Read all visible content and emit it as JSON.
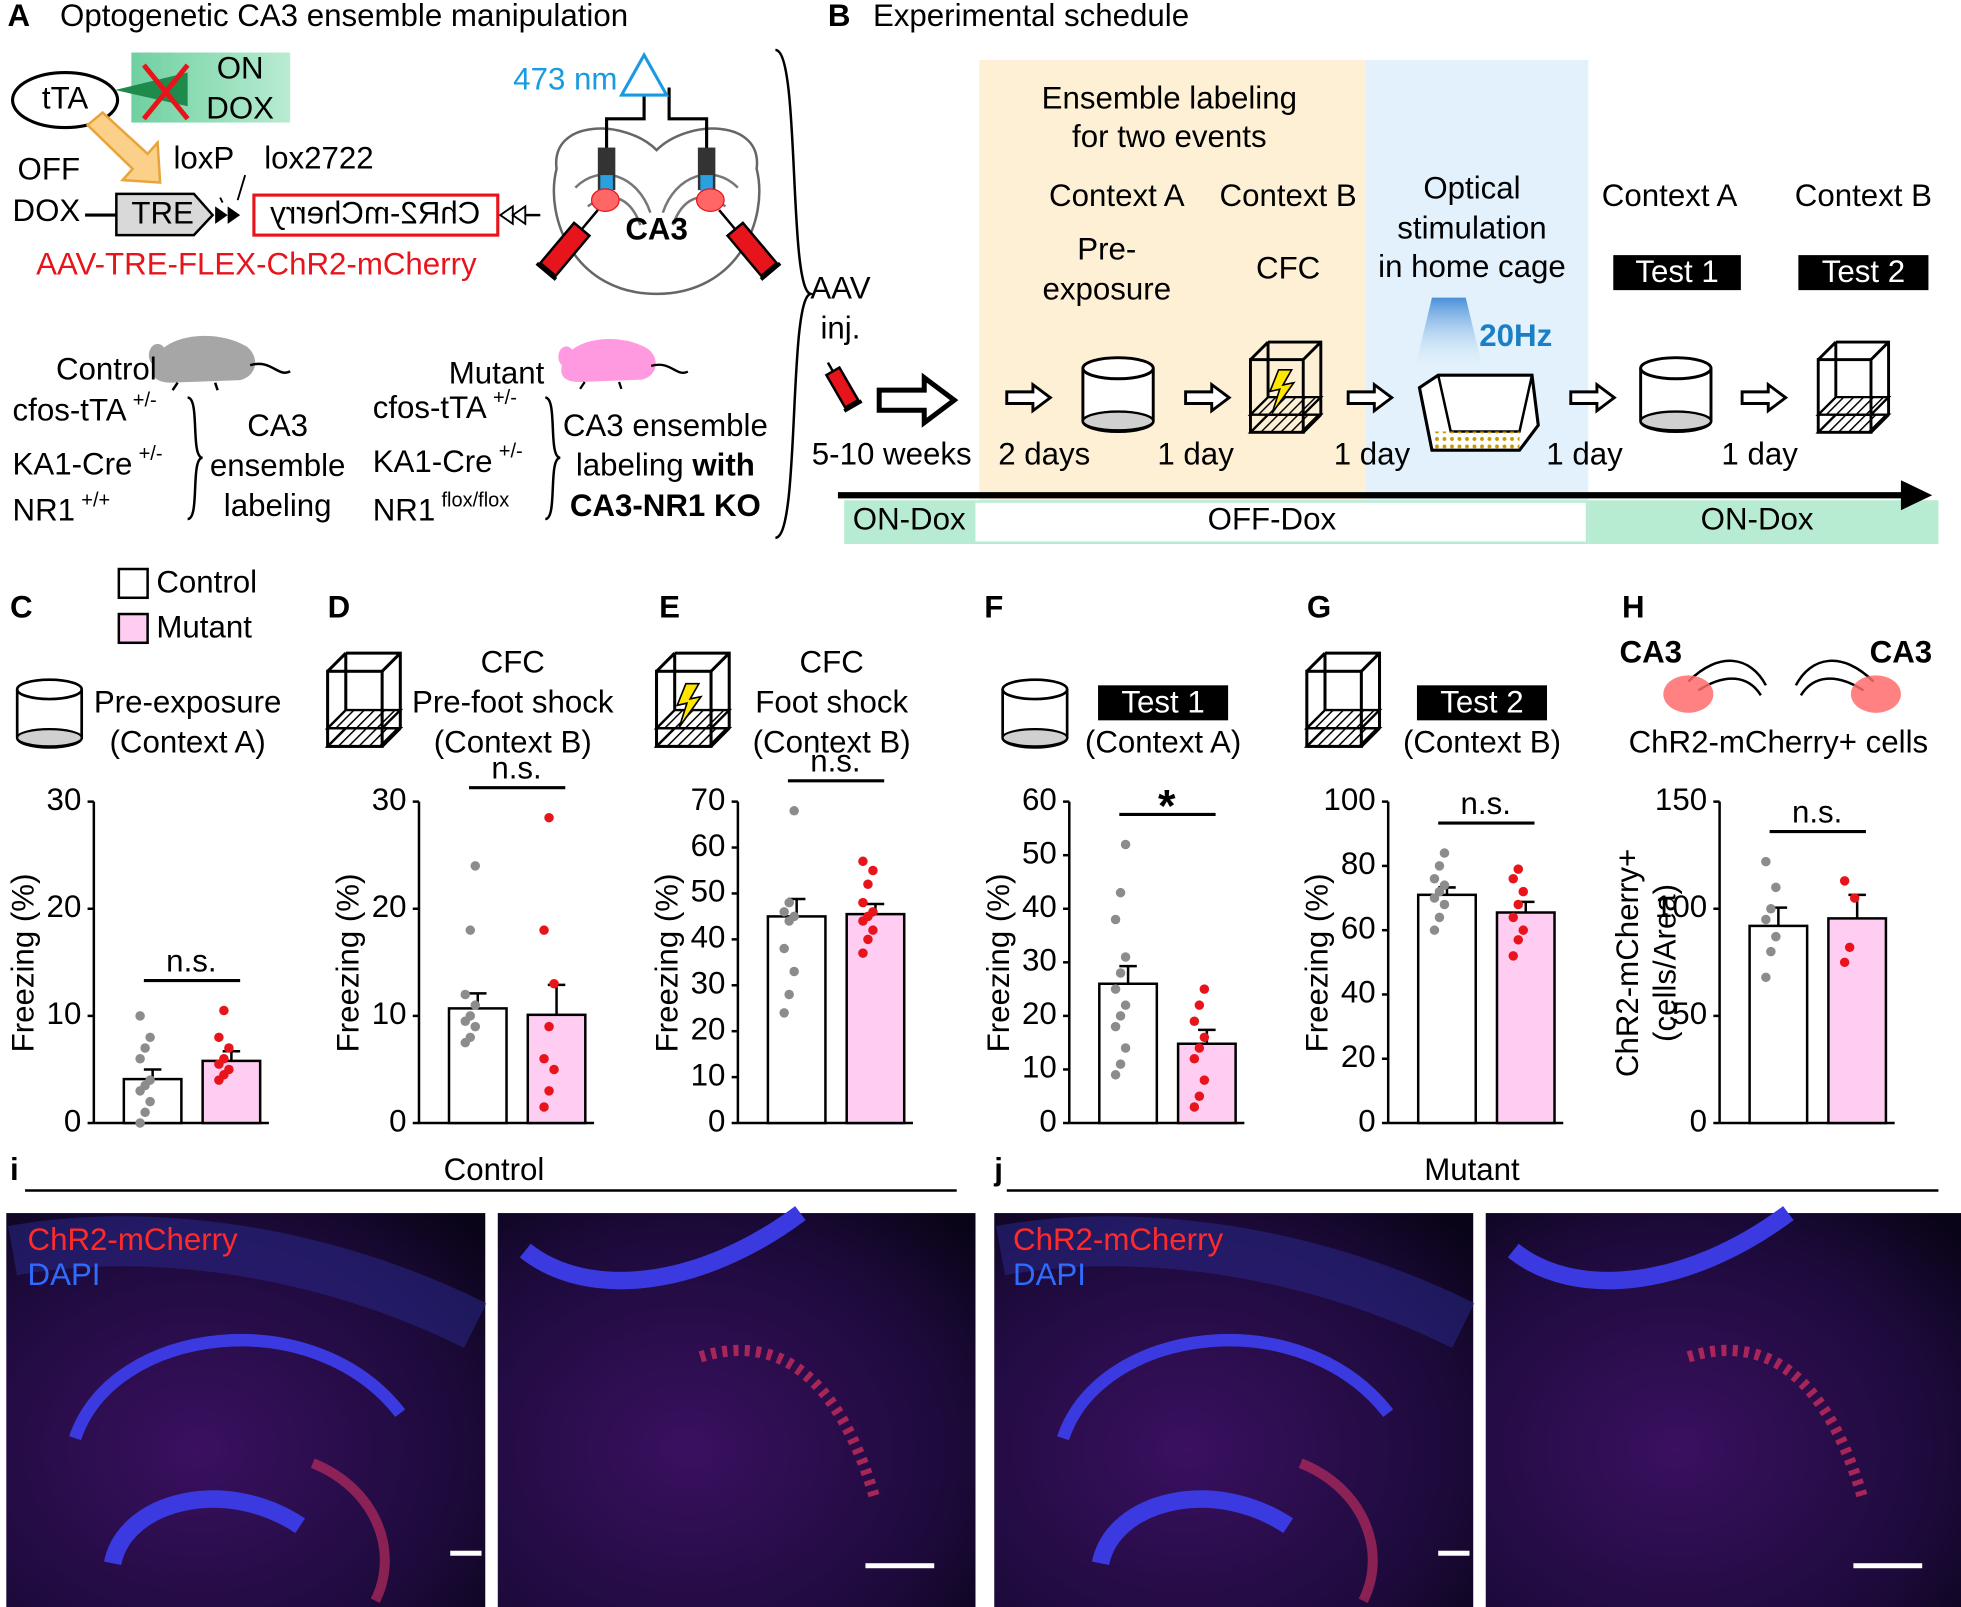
{
  "panel_a": {
    "label": "A",
    "title": "Optogenetic CA3 ensemble manipulation",
    "tta": "tTA",
    "on_dox": [
      "ON",
      "DOX"
    ],
    "off_dox": [
      "OFF",
      "DOX"
    ],
    "tre": "TRE",
    "loxp": "loxP",
    "lox2722": "lox2722",
    "chr2": "ChR2-mCherry",
    "laser": "473 nm",
    "ca3": "CA3",
    "aav": "AAV-TRE-FLEX-ChR2-mCherry",
    "control": {
      "name": "Control",
      "genotype": [
        [
          "cfos-tTA",
          "+/-"
        ],
        [
          "KA1-Cre",
          "+/-"
        ],
        [
          "NR1",
          "+/+"
        ]
      ],
      "result": [
        "CA3",
        "ensemble",
        "labeling"
      ]
    },
    "mutant": {
      "name": "Mutant",
      "genotype": [
        [
          "cfos-tTA",
          "+/-"
        ],
        [
          "KA1-Cre",
          "+/-"
        ],
        [
          "NR1",
          "flox/flox"
        ]
      ],
      "result": {
        "line1": "CA3 ensemble",
        "line2": "labeling",
        "line2_bold": "with",
        "line3": "CA3-NR1 KO"
      }
    }
  },
  "panel_b": {
    "label": "B",
    "title": "Experimental schedule",
    "labeling": [
      "Ensemble labeling",
      "for two events"
    ],
    "aav": [
      "AAV",
      "inj."
    ],
    "steps": [
      {
        "context": "Context A",
        "desc": [
          "Pre-",
          "exposure"
        ]
      },
      {
        "context": "Context B",
        "desc": [
          "CFC"
        ]
      },
      {
        "desc": [
          "Optical",
          "stimulation",
          "in home cage"
        ],
        "freq": "20Hz"
      },
      {
        "context": "Context A",
        "test": "Test 1"
      },
      {
        "context": "Context B",
        "test": "Test 2"
      }
    ],
    "intervals": [
      "5-10 weeks",
      "2 days",
      "1 day",
      "1 day",
      "1 day",
      "1 day"
    ],
    "dox": [
      "ON-Dox",
      "OFF-Dox",
      "ON-Dox"
    ]
  },
  "chart_data": [
    {
      "type": "bar",
      "panel": "C",
      "title": [
        "Pre-exposure",
        "(Context A)"
      ],
      "ylabel": "Freezing (%)",
      "ylim": [
        0,
        30
      ],
      "yticks": [
        0,
        10,
        20,
        30
      ],
      "significance": "n.s.",
      "series": [
        {
          "name": "Control",
          "color": "#ffffff",
          "point_color": "#8c8c8c",
          "values": [
            4.1
          ],
          "errors": [
            0.9
          ],
          "points": [
            0,
            1,
            2,
            3,
            3.5,
            4,
            6,
            7,
            8,
            10
          ]
        },
        {
          "name": "Mutant",
          "color": "#ffccf2",
          "point_color": "#e8141b",
          "values": [
            5.8
          ],
          "errors": [
            0.9
          ],
          "points": [
            4,
            4.5,
            5,
            5.5,
            6,
            7,
            8,
            10.5
          ]
        }
      ]
    },
    {
      "type": "bar",
      "panel": "D",
      "title": [
        "CFC",
        "Pre-foot shock",
        "(Context B)"
      ],
      "ylabel": "Freezing (%)",
      "ylim": [
        0,
        30
      ],
      "yticks": [
        0,
        10,
        20,
        30
      ],
      "significance": "n.s.",
      "series": [
        {
          "name": "Control",
          "color": "#ffffff",
          "point_color": "#8c8c8c",
          "values": [
            10.7
          ],
          "errors": [
            1.4
          ],
          "points": [
            7.5,
            8,
            9,
            9.5,
            10,
            11,
            12,
            18,
            24
          ]
        },
        {
          "name": "Mutant",
          "color": "#ffccf2",
          "point_color": "#e8141b",
          "values": [
            10.1
          ],
          "errors": [
            2.8
          ],
          "points": [
            1.5,
            3,
            5,
            6,
            9,
            13,
            18,
            28.5
          ]
        }
      ]
    },
    {
      "type": "bar",
      "panel": "E",
      "title": [
        "CFC",
        "Foot shock",
        "(Context B)"
      ],
      "ylabel": "Freezing (%)",
      "ylim": [
        0,
        70
      ],
      "yticks": [
        0,
        10,
        20,
        30,
        40,
        50,
        60,
        70
      ],
      "significance": "n.s.",
      "series": [
        {
          "name": "Control",
          "color": "#ffffff",
          "point_color": "#8c8c8c",
          "values": [
            45
          ],
          "errors": [
            3.8
          ],
          "points": [
            24,
            28,
            33,
            38,
            44,
            45,
            46,
            48,
            68
          ]
        },
        {
          "name": "Mutant",
          "color": "#ffccf2",
          "point_color": "#e8141b",
          "values": [
            45.5
          ],
          "errors": [
            2.2
          ],
          "points": [
            37,
            40,
            42,
            44,
            45,
            46,
            48,
            52,
            55,
            57
          ]
        }
      ]
    },
    {
      "type": "bar",
      "panel": "F",
      "title_box": "Test 1",
      "title": [
        "(Context A)"
      ],
      "ylabel": "Freezing (%)",
      "ylim": [
        0,
        60
      ],
      "yticks": [
        0,
        10,
        20,
        30,
        40,
        50,
        60
      ],
      "significance": "*",
      "series": [
        {
          "name": "Control",
          "color": "#ffffff",
          "point_color": "#8c8c8c",
          "values": [
            26
          ],
          "errors": [
            3.3
          ],
          "points": [
            9,
            11,
            14,
            18,
            20,
            22,
            25,
            28,
            31,
            38,
            43,
            52
          ]
        },
        {
          "name": "Mutant",
          "color": "#ffccf2",
          "point_color": "#e8141b",
          "values": [
            14.8
          ],
          "errors": [
            2.6
          ],
          "points": [
            3,
            5,
            8,
            12,
            14,
            16,
            19,
            22,
            25
          ]
        }
      ]
    },
    {
      "type": "bar",
      "panel": "G",
      "title_box": "Test 2",
      "title": [
        "(Context B)"
      ],
      "ylabel": "Freezing (%)",
      "ylim": [
        0,
        100
      ],
      "yticks": [
        0,
        20,
        40,
        60,
        80,
        100
      ],
      "significance": "n.s.",
      "series": [
        {
          "name": "Control",
          "color": "#ffffff",
          "point_color": "#8c8c8c",
          "values": [
            71
          ],
          "errors": [
            2.3
          ],
          "points": [
            60,
            64,
            68,
            70,
            72,
            74,
            76,
            80,
            84
          ]
        },
        {
          "name": "Mutant",
          "color": "#ffccf2",
          "point_color": "#e8141b",
          "values": [
            65.5
          ],
          "errors": [
            3.3
          ],
          "points": [
            52,
            57,
            60,
            64,
            68,
            72,
            76,
            79
          ]
        }
      ]
    },
    {
      "type": "bar",
      "panel": "H",
      "icon_labels": [
        "CA3",
        "CA3"
      ],
      "title": [
        "ChR2-mCherry+ cells"
      ],
      "ylabel": [
        "ChR2-mCherry+",
        "(cells/Area)"
      ],
      "ylim": [
        0,
        150
      ],
      "yticks": [
        0,
        50,
        100,
        150
      ],
      "significance": "n.s.",
      "series": [
        {
          "name": "Control",
          "color": "#ffffff",
          "point_color": "#8c8c8c",
          "values": [
            92
          ],
          "errors": [
            8.5
          ],
          "points": [
            68,
            80,
            87,
            95,
            100,
            110,
            122
          ]
        },
        {
          "name": "Mutant",
          "color": "#ffccf2",
          "point_color": "#e8141b",
          "values": [
            95.5
          ],
          "errors": [
            11
          ],
          "points": [
            75,
            82,
            105,
            113
          ]
        }
      ]
    }
  ],
  "images": {
    "i": {
      "label": "i",
      "title": "Control",
      "stain": [
        "ChR2-mCherry",
        "DAPI"
      ]
    },
    "j": {
      "label": "j",
      "title": "Mutant",
      "stain": [
        "ChR2-mCherry",
        "DAPI"
      ]
    }
  }
}
